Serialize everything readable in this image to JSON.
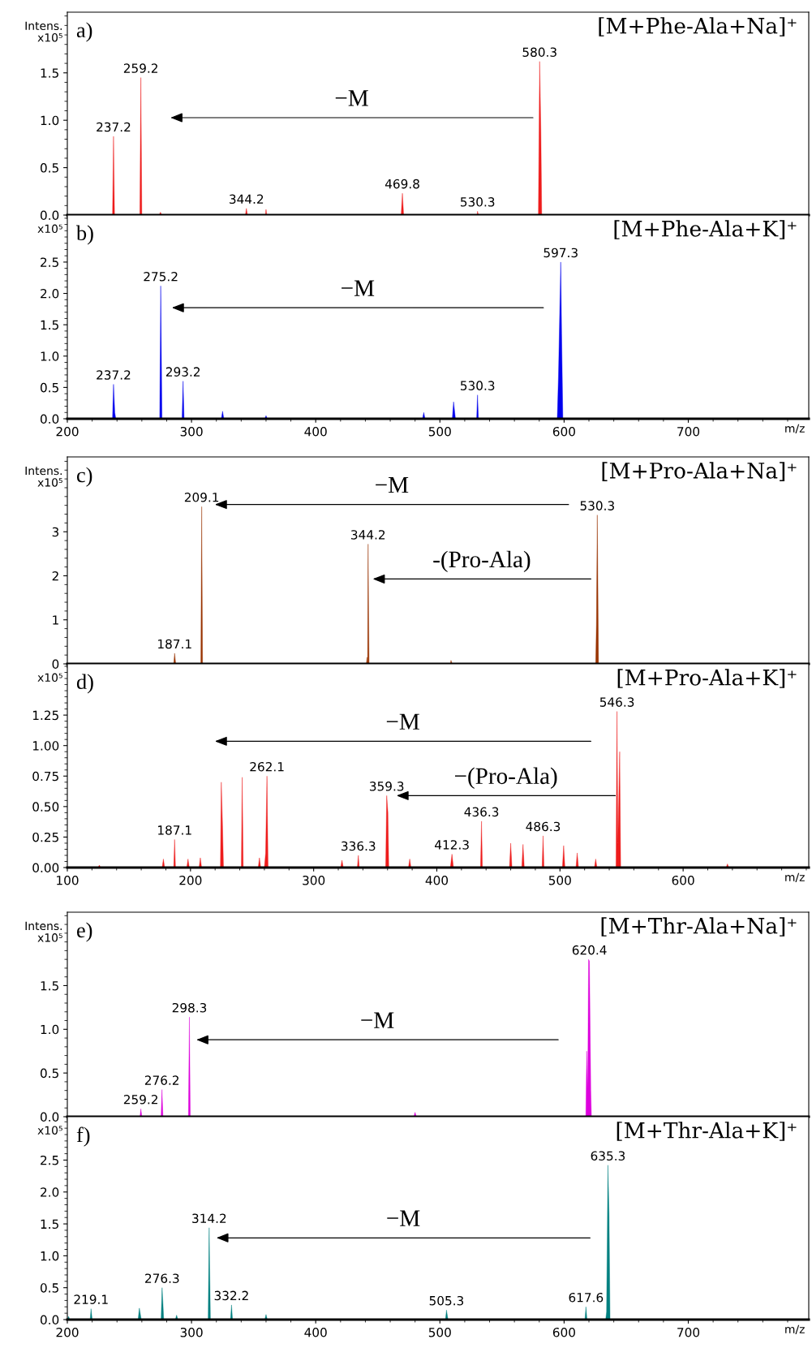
{
  "chart_data": [
    {
      "type": "area",
      "title": "a)",
      "ylabel": "Intens.\nx10⁵",
      "tick_labels": "y",
      "xlim": [
        200,
        797
      ],
      "ylim": [
        0,
        2.14
      ],
      "yticks": [
        {
          "value": 0,
          "label": "0.0"
        },
        {
          "value": 0.5,
          "label": "0.5"
        },
        {
          "value": 1,
          "label": "1.0"
        },
        {
          "value": 1.5,
          "label": "1.5"
        }
      ],
      "xticks": [
        200,
        300,
        400,
        500,
        600,
        700
      ],
      "series": [
        {
          "color": "#ee1c1c",
          "x": [
            200,
            236.4,
            237.2,
            238,
            258.4,
            259.2,
            260,
            274,
            275,
            276,
            343.4,
            344.2,
            345,
            359.5,
            360,
            360.6,
            468.8,
            469.8,
            470.8,
            530,
            530.3,
            531,
            579.3,
            580.3,
            581.3,
            582,
            797
          ],
          "values": [
            0,
            0,
            0.83,
            0,
            0,
            1.45,
            0,
            0,
            0.03,
            0,
            0,
            0.07,
            0,
            0,
            0.06,
            0,
            0,
            0.23,
            0,
            0,
            0.04,
            0,
            0,
            1.62,
            0.88,
            0,
            0
          ]
        }
      ],
      "annotations": [
        {
          "text": "237.2",
          "x": 237.2,
          "y": 0.83
        },
        {
          "text": "259.2",
          "x": 259.2,
          "y": 1.45
        },
        {
          "text": "344.2",
          "x": 344.2,
          "y": 0.07
        },
        {
          "text": "469.8",
          "x": 469.8,
          "y": 0.23
        },
        {
          "text": "530.3",
          "x": 530.3,
          "y": 0.04
        },
        {
          "text": "580.3",
          "x": 580.3,
          "y": 1.62
        },
        "−M",
        "[M+Phe-Ala+Na]⁺"
      ]
    },
    {
      "type": "area",
      "title": "b)",
      "ylabel": "x10⁵",
      "xlabel": "m/z",
      "xlim": [
        200,
        797
      ],
      "ylim": [
        0,
        3.25
      ],
      "yticks": [
        {
          "value": 0,
          "label": "0.0"
        },
        {
          "value": 0.5,
          "label": "0.5"
        },
        {
          "value": 1,
          "label": "1.0"
        },
        {
          "value": 1.5,
          "label": "1.5"
        },
        {
          "value": 2,
          "label": "2.0"
        },
        {
          "value": 2.5,
          "label": "2.5"
        }
      ],
      "xticks": [
        200,
        300,
        400,
        500,
        600,
        700
      ],
      "series": [
        {
          "color": "#0000ee",
          "x": [
            200,
            236.4,
            237.2,
            238.2,
            239,
            274.4,
            275.2,
            276.2,
            292.4,
            293.2,
            294,
            324,
            325,
            326,
            359,
            360,
            361,
            486,
            487,
            488,
            510,
            511,
            512.5,
            529.6,
            530.3,
            531,
            594.5,
            595.5,
            597.3,
            598,
            599,
            797
          ],
          "values": [
            0,
            0,
            0.55,
            0.1,
            0,
            0,
            2.12,
            0,
            0,
            0.6,
            0,
            0,
            0.12,
            0,
            0,
            0.05,
            0,
            0,
            0.1,
            0,
            0,
            0.27,
            0,
            0,
            0.38,
            0,
            0,
            0.7,
            2.5,
            1.35,
            0,
            0
          ]
        }
      ],
      "annotations": [
        {
          "text": "237.2",
          "x": 237.2,
          "y": 0.55
        },
        {
          "text": "275.2",
          "x": 275.2,
          "y": 2.12
        },
        {
          "text": "293.2",
          "x": 293.2,
          "y": 0.6
        },
        {
          "text": "530.3",
          "x": 530.3,
          "y": 0.38
        },
        {
          "text": "597.3",
          "x": 597.3,
          "y": 2.5
        },
        "−M",
        "[M+Phe-Ala+K]⁺"
      ]
    },
    {
      "type": "area",
      "title": "c)",
      "ylabel": "Intens.\nx10⁵",
      "tick_labels": "y",
      "xlim": [
        100,
        702
      ],
      "ylim": [
        0,
        4.7
      ],
      "yticks": [
        0,
        1,
        2,
        3
      ],
      "xticks": [
        100,
        200,
        300,
        400,
        500,
        600
      ],
      "series": [
        {
          "color": "#993300",
          "x": [
            100,
            186.4,
            187.1,
            188,
            208.4,
            209.1,
            209.8,
            342.8,
            343.4,
            343.8,
            344.2,
            345,
            411,
            411.5,
            412.5,
            529,
            529.6,
            530.3,
            531.3,
            702
          ],
          "values": [
            0,
            0,
            0.24,
            0,
            0,
            3.57,
            0,
            0,
            0.15,
            0,
            2.72,
            0,
            0,
            0.08,
            0,
            0,
            0.9,
            3.38,
            0,
            0
          ]
        }
      ],
      "annotations": [
        {
          "text": "187.1",
          "x": 187.1,
          "y": 0.24
        },
        {
          "text": "209.1",
          "x": 209.1,
          "y": 3.57
        },
        {
          "text": "344.2",
          "x": 344.2,
          "y": 2.72
        },
        {
          "text": "530.3",
          "x": 530.3,
          "y": 3.38
        },
        "−M",
        "-(Pro-Ala)",
        "[M+Pro-Ala+Na]⁺"
      ]
    },
    {
      "type": "area",
      "title": "d)",
      "ylabel": "x10⁵",
      "xlabel": "m/z",
      "xlim": [
        100,
        702
      ],
      "ylim": [
        0,
        1.67
      ],
      "yticks": [
        {
          "value": 0,
          "label": "0.00"
        },
        {
          "value": 0.25,
          "label": "0.25"
        },
        {
          "value": 0.5,
          "label": "0.50"
        },
        {
          "value": 0.75,
          "label": "0.75"
        },
        {
          "value": 1,
          "label": "1.00"
        },
        {
          "value": 1.25,
          "label": "1.25"
        }
      ],
      "xticks": [
        100,
        200,
        300,
        400,
        500,
        600
      ],
      "series": [
        {
          "color": "#ee1c1c",
          "x": [
            100,
            125,
            126,
            127,
            177,
            178,
            179,
            186.4,
            187.1,
            187.8,
            197,
            198,
            199,
            207,
            208,
            209,
            224.3,
            225,
            226,
            226.8,
            241.3,
            242,
            242.8,
            255,
            256,
            257,
            260,
            261,
            262.1,
            263,
            322,
            323,
            324,
            335.5,
            336.3,
            337,
            358.5,
            359.3,
            360.3,
            361,
            377,
            378,
            379,
            411,
            412.3,
            413.5,
            435.5,
            436.3,
            437,
            459,
            460,
            461,
            469,
            470,
            471,
            485.5,
            486.3,
            487,
            502,
            503,
            504,
            513,
            514,
            515,
            528,
            529,
            530,
            545.5,
            546.3,
            547,
            548.5,
            549.3,
            635,
            636,
            637,
            702
          ],
          "values": [
            0,
            0,
            0.02,
            0,
            0,
            0.07,
            0,
            0,
            0.23,
            0,
            0,
            0.07,
            0,
            0,
            0.08,
            0,
            0,
            0.7,
            0.35,
            0,
            0,
            0.74,
            0,
            0,
            0.08,
            0,
            0,
            0.12,
            0.75,
            0,
            0,
            0.06,
            0,
            0,
            0.1,
            0,
            0,
            0.59,
            0.45,
            0,
            0,
            0.07,
            0,
            0,
            0.11,
            0,
            0,
            0.38,
            0,
            0,
            0.2,
            0,
            0,
            0.19,
            0,
            0,
            0.26,
            0,
            0,
            0.18,
            0,
            0,
            0.12,
            0,
            0,
            0.07,
            0,
            0,
            1.28,
            0.2,
            0.95,
            0,
            0,
            0.03,
            0,
            0
          ]
        }
      ],
      "annotations": [
        {
          "text": "187.1",
          "x": 187.1,
          "y": 0.23
        },
        {
          "text": "262.1",
          "x": 262.1,
          "y": 0.75
        },
        {
          "text": "336.3",
          "x": 336.3,
          "y": 0.1
        },
        {
          "text": "359.3",
          "x": 359.3,
          "y": 0.59
        },
        {
          "text": "412.3",
          "x": 412.3,
          "y": 0.11
        },
        {
          "text": "436.3",
          "x": 436.3,
          "y": 0.38
        },
        {
          "text": "486.3",
          "x": 486.3,
          "y": 0.26
        },
        {
          "text": "546.3",
          "x": 546.3,
          "y": 1.28
        },
        "−M",
        "−(Pro-Ala)",
        "[M+Pro-Ala+K]⁺"
      ]
    },
    {
      "type": "area",
      "title": "e)",
      "ylabel": "Intens.\nx10⁵",
      "tick_labels": "y",
      "xlim": [
        200,
        797
      ],
      "ylim": [
        0,
        2.34
      ],
      "yticks": [
        {
          "value": 0,
          "label": "0.0"
        },
        {
          "value": 0.5,
          "label": "0.5"
        },
        {
          "value": 1,
          "label": "1.0"
        },
        {
          "value": 1.5,
          "label": "1.5"
        }
      ],
      "xticks": [
        200,
        300,
        400,
        500,
        600,
        700
      ],
      "series": [
        {
          "color": "#dd00dd",
          "x": [
            200,
            258.5,
            259.2,
            260,
            275.5,
            276.2,
            277,
            297.5,
            298.3,
            299,
            479,
            480,
            481,
            617.5,
            618.2,
            619,
            619.7,
            620.4,
            621.5,
            622,
            797
          ],
          "values": [
            0,
            0,
            0.09,
            0,
            0,
            0.31,
            0,
            0,
            1.14,
            0,
            0,
            0.05,
            0,
            0,
            0.75,
            0.3,
            1.8,
            1.78,
            0.3,
            0,
            0
          ]
        }
      ],
      "annotations": [
        {
          "text": "259.2",
          "x": 259.2,
          "y": 0.09
        },
        {
          "text": "276.2",
          "x": 276.2,
          "y": 0.31
        },
        {
          "text": "298.3",
          "x": 298.3,
          "y": 1.14
        },
        {
          "text": "620.4",
          "x": 620.4,
          "y": 1.8
        },
        "−M",
        "[M+Thr-Ala+Na]⁺"
      ]
    },
    {
      "type": "area",
      "title": "f)",
      "ylabel": "x10⁵",
      "xlabel": "m/z",
      "xlim": [
        200,
        797
      ],
      "ylim": [
        0,
        3.18
      ],
      "yticks": [
        {
          "value": 0,
          "label": "0.0"
        },
        {
          "value": 0.5,
          "label": "0.5"
        },
        {
          "value": 1,
          "label": "1.0"
        },
        {
          "value": 1.5,
          "label": "1.5"
        },
        {
          "value": 2,
          "label": "2.0"
        },
        {
          "value": 2.5,
          "label": "2.5"
        }
      ],
      "xticks": [
        200,
        300,
        400,
        500,
        600,
        700
      ],
      "series": [
        {
          "color": "#008080",
          "x": [
            200,
            201,
            202,
            218.4,
            219.1,
            220,
            257,
            258,
            259.5,
            275.5,
            276.3,
            277,
            277.6,
            287,
            288,
            289,
            313.4,
            314.2,
            315.2,
            331.4,
            332.2,
            333,
            359,
            360,
            361,
            504.5,
            505.3,
            506.5,
            616.8,
            617.6,
            618.4,
            633.5,
            634.2,
            635.3,
            636.2,
            637,
            797
          ],
          "values": [
            0,
            0.05,
            0,
            0,
            0.17,
            0,
            0,
            0.18,
            0,
            0,
            0.5,
            0.25,
            0,
            0,
            0.07,
            0,
            0,
            1.44,
            0,
            0,
            0.23,
            0,
            0,
            0.08,
            0,
            0,
            0.15,
            0,
            0,
            0.2,
            0,
            0,
            0.12,
            2.42,
            1.65,
            0,
            0
          ]
        }
      ],
      "annotations": [
        {
          "text": "219.1",
          "x": 219.1,
          "y": 0.17
        },
        {
          "text": "276.3",
          "x": 276.3,
          "y": 0.5
        },
        {
          "text": "314.2",
          "x": 314.2,
          "y": 1.44
        },
        {
          "text": "332.2",
          "x": 332.2,
          "y": 0.23
        },
        {
          "text": "505.3",
          "x": 505.3,
          "y": 0.15
        },
        {
          "text": "617.6",
          "x": 617.6,
          "y": 0.2
        },
        {
          "text": "635.3",
          "x": 635.3,
          "y": 2.42
        },
        "−M",
        "[M+Thr-Ala+K]⁺"
      ]
    }
  ]
}
